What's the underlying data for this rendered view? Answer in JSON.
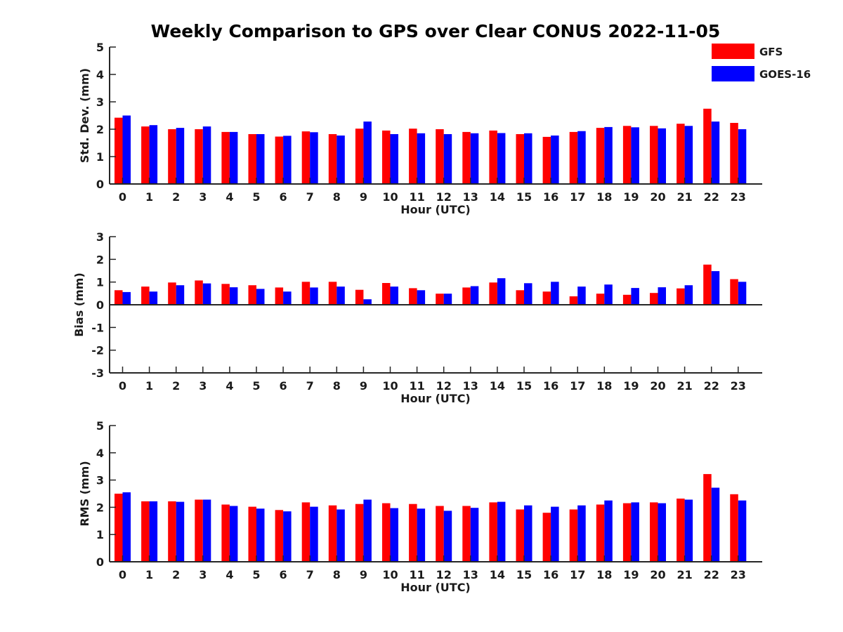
{
  "title": "Weekly Comparison to GPS over Clear CONUS 2022-11-05",
  "legend": {
    "placement": "top-right",
    "entries": [
      {
        "label": "GFS",
        "color": "#ff0000"
      },
      {
        "label": "GOES-16",
        "color": "#0000ff"
      }
    ]
  },
  "chart_data": [
    {
      "type": "bar",
      "ylabel": "Std. Dev. (mm)",
      "xlabel": "Hour (UTC)",
      "ylim": [
        0,
        5
      ],
      "yticks": [
        "0",
        "1",
        "2",
        "3",
        "4",
        "5"
      ],
      "categories": [
        "0",
        "1",
        "2",
        "3",
        "4",
        "5",
        "6",
        "7",
        "8",
        "9",
        "10",
        "11",
        "12",
        "13",
        "14",
        "15",
        "16",
        "17",
        "18",
        "19",
        "20",
        "21",
        "22",
        "23"
      ],
      "series": [
        {
          "name": "GFS",
          "color": "#ff0000",
          "values": [
            2.42,
            2.1,
            2.0,
            2.0,
            1.9,
            1.82,
            1.73,
            1.92,
            1.82,
            2.02,
            1.95,
            2.02,
            2.0,
            1.9,
            1.95,
            1.82,
            1.72,
            1.9,
            2.05,
            2.12,
            2.12,
            2.2,
            2.75,
            2.23
          ]
        },
        {
          "name": "GOES-16",
          "color": "#0000ff",
          "values": [
            2.5,
            2.15,
            2.05,
            2.1,
            1.9,
            1.82,
            1.76,
            1.89,
            1.77,
            2.28,
            1.82,
            1.85,
            1.82,
            1.85,
            1.86,
            1.85,
            1.77,
            1.93,
            2.08,
            2.07,
            2.03,
            2.12,
            2.28,
            2.0
          ]
        }
      ]
    },
    {
      "type": "bar",
      "ylabel": "Bias (mm)",
      "xlabel": "Hour (UTC)",
      "ylim": [
        -3,
        3
      ],
      "yticks": [
        "-3",
        "-2",
        "-1",
        "0",
        "1",
        "2",
        "3"
      ],
      "categories": [
        "0",
        "1",
        "2",
        "3",
        "4",
        "5",
        "6",
        "7",
        "8",
        "9",
        "10",
        "11",
        "12",
        "13",
        "14",
        "15",
        "16",
        "17",
        "18",
        "19",
        "20",
        "21",
        "22",
        "23"
      ],
      "series": [
        {
          "name": "GFS",
          "color": "#ff0000",
          "values": [
            0.64,
            0.8,
            0.98,
            1.07,
            0.92,
            0.86,
            0.76,
            1.01,
            1.01,
            0.66,
            0.96,
            0.73,
            0.49,
            0.76,
            0.98,
            0.64,
            0.58,
            0.37,
            0.49,
            0.44,
            0.52,
            0.72,
            1.77,
            1.13
          ]
        },
        {
          "name": "GOES-16",
          "color": "#0000ff",
          "values": [
            0.56,
            0.58,
            0.86,
            0.94,
            0.77,
            0.7,
            0.58,
            0.76,
            0.8,
            0.24,
            0.8,
            0.64,
            0.49,
            0.82,
            1.17,
            0.95,
            1.01,
            0.8,
            0.89,
            0.74,
            0.77,
            0.86,
            1.48,
            1.01
          ]
        }
      ]
    },
    {
      "type": "bar",
      "ylabel": "RMS (mm)",
      "xlabel": "Hour (UTC)",
      "ylim": [
        0,
        5
      ],
      "yticks": [
        "0",
        "1",
        "2",
        "3",
        "4",
        "5"
      ],
      "categories": [
        "0",
        "1",
        "2",
        "3",
        "4",
        "5",
        "6",
        "7",
        "8",
        "9",
        "10",
        "11",
        "12",
        "13",
        "14",
        "15",
        "16",
        "17",
        "18",
        "19",
        "20",
        "21",
        "22",
        "23"
      ],
      "series": [
        {
          "name": "GFS",
          "color": "#ff0000",
          "values": [
            2.5,
            2.22,
            2.22,
            2.28,
            2.1,
            2.02,
            1.9,
            2.18,
            2.07,
            2.12,
            2.15,
            2.12,
            2.05,
            2.05,
            2.18,
            1.92,
            1.8,
            1.92,
            2.1,
            2.15,
            2.18,
            2.32,
            3.22,
            2.48
          ]
        },
        {
          "name": "GOES-16",
          "color": "#0000ff",
          "values": [
            2.55,
            2.22,
            2.2,
            2.28,
            2.05,
            1.95,
            1.85,
            2.02,
            1.92,
            2.28,
            1.97,
            1.95,
            1.87,
            1.98,
            2.2,
            2.07,
            2.02,
            2.07,
            2.25,
            2.18,
            2.15,
            2.28,
            2.72,
            2.25
          ]
        }
      ]
    }
  ]
}
